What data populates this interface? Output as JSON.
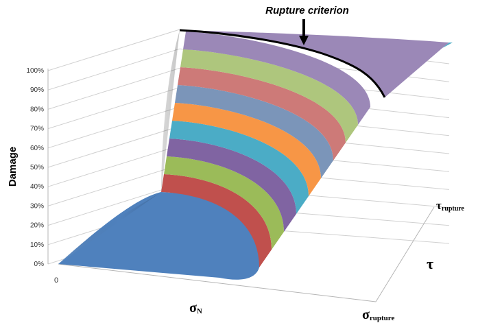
{
  "chart_data": {
    "type": "surface",
    "z_axis_label": "Damage",
    "z_ticks": [
      "0%",
      "10%",
      "20%",
      "30%",
      "40%",
      "50%",
      "60%",
      "70%",
      "80%",
      "90%",
      "100%"
    ],
    "zlim": [
      0,
      100
    ],
    "x_axis": {
      "symbol": "σ",
      "subscript": "N",
      "origin_label": "0",
      "end_symbol": "σ",
      "end_subscript": "rupture"
    },
    "y_axis": {
      "symbol": "τ",
      "end_symbol": "τ",
      "end_subscript": "rupture"
    },
    "annotation": "Rupture criterion",
    "band_colors": [
      "#4f81bd",
      "#c0504d",
      "#9bbb59",
      "#8064a2",
      "#4bacc6",
      "#f79646",
      "#7b95b9",
      "#cd7a78",
      "#aec67d",
      "#9b88b7"
    ],
    "damage_levels": [
      0,
      10,
      20,
      30,
      40,
      50,
      60,
      70,
      80,
      90,
      100
    ],
    "grid": true
  }
}
